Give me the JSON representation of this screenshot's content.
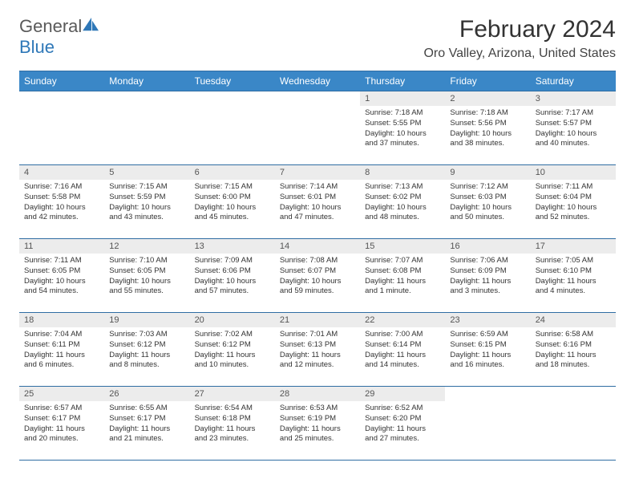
{
  "brand": {
    "part1": "General",
    "part2": "Blue"
  },
  "title": "February 2024",
  "location": "Oro Valley, Arizona, United States",
  "colors": {
    "header_bg": "#3a87c7",
    "header_border": "#2f6da3",
    "daynum_bg": "#ececec",
    "brand_blue": "#2f78b8",
    "brand_gray": "#5a5a5a",
    "text": "#333333"
  },
  "weekdays": [
    "Sunday",
    "Monday",
    "Tuesday",
    "Wednesday",
    "Thursday",
    "Friday",
    "Saturday"
  ],
  "first_weekday_index": 4,
  "days": [
    {
      "n": 1,
      "sunrise": "7:18 AM",
      "sunset": "5:55 PM",
      "daylight": "10 hours and 37 minutes."
    },
    {
      "n": 2,
      "sunrise": "7:18 AM",
      "sunset": "5:56 PM",
      "daylight": "10 hours and 38 minutes."
    },
    {
      "n": 3,
      "sunrise": "7:17 AM",
      "sunset": "5:57 PM",
      "daylight": "10 hours and 40 minutes."
    },
    {
      "n": 4,
      "sunrise": "7:16 AM",
      "sunset": "5:58 PM",
      "daylight": "10 hours and 42 minutes."
    },
    {
      "n": 5,
      "sunrise": "7:15 AM",
      "sunset": "5:59 PM",
      "daylight": "10 hours and 43 minutes."
    },
    {
      "n": 6,
      "sunrise": "7:15 AM",
      "sunset": "6:00 PM",
      "daylight": "10 hours and 45 minutes."
    },
    {
      "n": 7,
      "sunrise": "7:14 AM",
      "sunset": "6:01 PM",
      "daylight": "10 hours and 47 minutes."
    },
    {
      "n": 8,
      "sunrise": "7:13 AM",
      "sunset": "6:02 PM",
      "daylight": "10 hours and 48 minutes."
    },
    {
      "n": 9,
      "sunrise": "7:12 AM",
      "sunset": "6:03 PM",
      "daylight": "10 hours and 50 minutes."
    },
    {
      "n": 10,
      "sunrise": "7:11 AM",
      "sunset": "6:04 PM",
      "daylight": "10 hours and 52 minutes."
    },
    {
      "n": 11,
      "sunrise": "7:11 AM",
      "sunset": "6:05 PM",
      "daylight": "10 hours and 54 minutes."
    },
    {
      "n": 12,
      "sunrise": "7:10 AM",
      "sunset": "6:05 PM",
      "daylight": "10 hours and 55 minutes."
    },
    {
      "n": 13,
      "sunrise": "7:09 AM",
      "sunset": "6:06 PM",
      "daylight": "10 hours and 57 minutes."
    },
    {
      "n": 14,
      "sunrise": "7:08 AM",
      "sunset": "6:07 PM",
      "daylight": "10 hours and 59 minutes."
    },
    {
      "n": 15,
      "sunrise": "7:07 AM",
      "sunset": "6:08 PM",
      "daylight": "11 hours and 1 minute."
    },
    {
      "n": 16,
      "sunrise": "7:06 AM",
      "sunset": "6:09 PM",
      "daylight": "11 hours and 3 minutes."
    },
    {
      "n": 17,
      "sunrise": "7:05 AM",
      "sunset": "6:10 PM",
      "daylight": "11 hours and 4 minutes."
    },
    {
      "n": 18,
      "sunrise": "7:04 AM",
      "sunset": "6:11 PM",
      "daylight": "11 hours and 6 minutes."
    },
    {
      "n": 19,
      "sunrise": "7:03 AM",
      "sunset": "6:12 PM",
      "daylight": "11 hours and 8 minutes."
    },
    {
      "n": 20,
      "sunrise": "7:02 AM",
      "sunset": "6:12 PM",
      "daylight": "11 hours and 10 minutes."
    },
    {
      "n": 21,
      "sunrise": "7:01 AM",
      "sunset": "6:13 PM",
      "daylight": "11 hours and 12 minutes."
    },
    {
      "n": 22,
      "sunrise": "7:00 AM",
      "sunset": "6:14 PM",
      "daylight": "11 hours and 14 minutes."
    },
    {
      "n": 23,
      "sunrise": "6:59 AM",
      "sunset": "6:15 PM",
      "daylight": "11 hours and 16 minutes."
    },
    {
      "n": 24,
      "sunrise": "6:58 AM",
      "sunset": "6:16 PM",
      "daylight": "11 hours and 18 minutes."
    },
    {
      "n": 25,
      "sunrise": "6:57 AM",
      "sunset": "6:17 PM",
      "daylight": "11 hours and 20 minutes."
    },
    {
      "n": 26,
      "sunrise": "6:55 AM",
      "sunset": "6:17 PM",
      "daylight": "11 hours and 21 minutes."
    },
    {
      "n": 27,
      "sunrise": "6:54 AM",
      "sunset": "6:18 PM",
      "daylight": "11 hours and 23 minutes."
    },
    {
      "n": 28,
      "sunrise": "6:53 AM",
      "sunset": "6:19 PM",
      "daylight": "11 hours and 25 minutes."
    },
    {
      "n": 29,
      "sunrise": "6:52 AM",
      "sunset": "6:20 PM",
      "daylight": "11 hours and 27 minutes."
    }
  ],
  "labels": {
    "sunrise": "Sunrise:",
    "sunset": "Sunset:",
    "daylight": "Daylight:"
  }
}
